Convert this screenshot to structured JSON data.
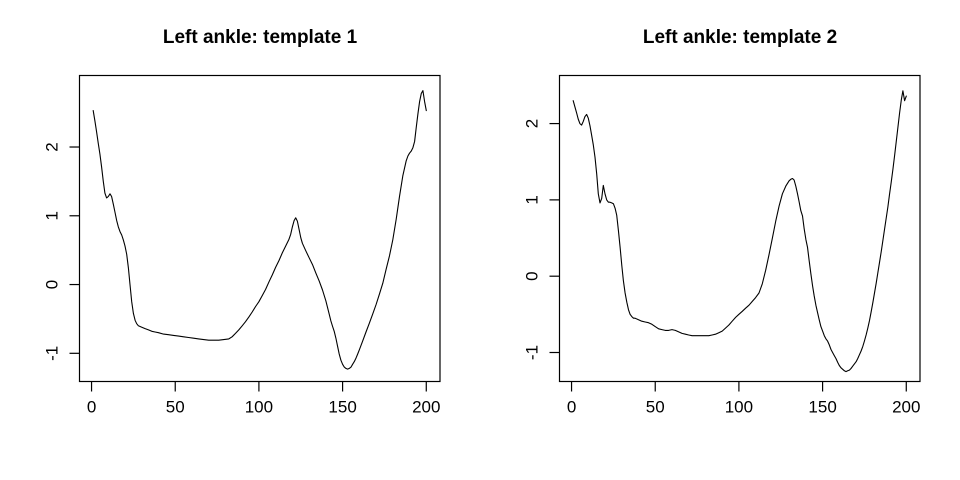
{
  "page": {
    "background_color": "#ffffff",
    "text_color": "#000000"
  },
  "chart_data": [
    {
      "type": "line",
      "title": "Left ankle: template 1",
      "xlabel": "",
      "ylabel": "",
      "legend": "none",
      "grid": false,
      "line_color": "#000000",
      "axis_color": "#000000",
      "x_ticks": [
        0,
        50,
        100,
        150,
        200
      ],
      "y_ticks": [
        -1,
        0,
        1,
        2
      ],
      "xlim": [
        -7.2,
        208.2
      ],
      "ylim": [
        -1.41,
        3.04
      ],
      "x": [
        1,
        2,
        3,
        4,
        5,
        6,
        7,
        8,
        9,
        10,
        11,
        12,
        13,
        14,
        15,
        16,
        17,
        18,
        19,
        20,
        21,
        22,
        23,
        24,
        25,
        26,
        27,
        28,
        30,
        32,
        34,
        36,
        38,
        40,
        43,
        46,
        49,
        52,
        55,
        58,
        61,
        64,
        67,
        70,
        73,
        76,
        79,
        82,
        84,
        86,
        88,
        90,
        92,
        94,
        96,
        98,
        100,
        102,
        104,
        106,
        108,
        110,
        112,
        114,
        116,
        118,
        119,
        120,
        121,
        122,
        123,
        124,
        125,
        126,
        128,
        130,
        132,
        134,
        136,
        138,
        140,
        142,
        143,
        144,
        145,
        146,
        147,
        148,
        149,
        150,
        151,
        152,
        153,
        154,
        155,
        156,
        157,
        158,
        159,
        160,
        162,
        164,
        166,
        168,
        170,
        172,
        174,
        176,
        178,
        180,
        182,
        184,
        186,
        188,
        189,
        190,
        191,
        192,
        193,
        194,
        195,
        196,
        197,
        198,
        199,
        200
      ],
      "y": [
        2.53,
        2.38,
        2.22,
        2.06,
        1.9,
        1.71,
        1.5,
        1.33,
        1.26,
        1.28,
        1.32,
        1.28,
        1.17,
        1.05,
        0.93,
        0.84,
        0.77,
        0.72,
        0.65,
        0.56,
        0.44,
        0.24,
        0.0,
        -0.25,
        -0.42,
        -0.52,
        -0.57,
        -0.6,
        -0.62,
        -0.64,
        -0.66,
        -0.68,
        -0.69,
        -0.7,
        -0.72,
        -0.73,
        -0.74,
        -0.75,
        -0.76,
        -0.77,
        -0.78,
        -0.79,
        -0.8,
        -0.81,
        -0.81,
        -0.81,
        -0.8,
        -0.79,
        -0.76,
        -0.71,
        -0.66,
        -0.6,
        -0.54,
        -0.47,
        -0.4,
        -0.32,
        -0.25,
        -0.16,
        -0.07,
        0.04,
        0.14,
        0.25,
        0.35,
        0.46,
        0.56,
        0.66,
        0.73,
        0.84,
        0.93,
        0.97,
        0.92,
        0.8,
        0.68,
        0.6,
        0.49,
        0.39,
        0.29,
        0.17,
        0.05,
        -0.08,
        -0.24,
        -0.43,
        -0.53,
        -0.61,
        -0.68,
        -0.78,
        -0.9,
        -1.01,
        -1.1,
        -1.16,
        -1.2,
        -1.22,
        -1.23,
        -1.22,
        -1.2,
        -1.16,
        -1.12,
        -1.07,
        -1.01,
        -0.95,
        -0.82,
        -0.69,
        -0.56,
        -0.43,
        -0.29,
        -0.14,
        0.02,
        0.22,
        0.42,
        0.65,
        0.95,
        1.28,
        1.58,
        1.8,
        1.87,
        1.91,
        1.94,
        1.99,
        2.08,
        2.28,
        2.48,
        2.66,
        2.78,
        2.82,
        2.66,
        2.53
      ]
    },
    {
      "type": "line",
      "title": "Left ankle: template 2",
      "xlabel": "",
      "ylabel": "",
      "legend": "none",
      "grid": false,
      "line_color": "#000000",
      "axis_color": "#000000",
      "x_ticks": [
        0,
        50,
        100,
        150,
        200
      ],
      "y_ticks": [
        -1,
        0,
        1,
        2
      ],
      "xlim": [
        -7.2,
        208.2
      ],
      "ylim": [
        -1.38,
        2.63
      ],
      "x": [
        1,
        2,
        3,
        4,
        5,
        6,
        7,
        8,
        9,
        10,
        11,
        12,
        13,
        14,
        15,
        16,
        17,
        18,
        19,
        20,
        21,
        22,
        23,
        24,
        25,
        26,
        27,
        28,
        29,
        30,
        31,
        32,
        33,
        34,
        35,
        36,
        37,
        38,
        40,
        42,
        44,
        46,
        48,
        50,
        52,
        54,
        56,
        58,
        60,
        62,
        64,
        66,
        68,
        70,
        72,
        74,
        76,
        78,
        80,
        82,
        84,
        86,
        88,
        90,
        92,
        94,
        96,
        98,
        100,
        102,
        104,
        106,
        108,
        110,
        112,
        114,
        116,
        118,
        120,
        122,
        124,
        126,
        128,
        130,
        131,
        132,
        133,
        134,
        135,
        136,
        137,
        138,
        139,
        140,
        141,
        142,
        143,
        144,
        145,
        146,
        147,
        148,
        149,
        150,
        151,
        152,
        153,
        154,
        155,
        156,
        157,
        158,
        159,
        160,
        161,
        162,
        163,
        164,
        165,
        166,
        167,
        168,
        169,
        170,
        171,
        172,
        173,
        174,
        175,
        176,
        177,
        178,
        179,
        180,
        181,
        182,
        183,
        184,
        185,
        186,
        187,
        188,
        189,
        190,
        191,
        192,
        193,
        194,
        195,
        196,
        197,
        198,
        199,
        200
      ],
      "y": [
        2.3,
        2.22,
        2.14,
        2.06,
        2.0,
        1.98,
        2.03,
        2.09,
        2.12,
        2.07,
        1.97,
        1.85,
        1.72,
        1.56,
        1.34,
        1.08,
        0.96,
        1.02,
        1.19,
        1.08,
        1.0,
        0.97,
        0.97,
        0.96,
        0.95,
        0.89,
        0.8,
        0.6,
        0.38,
        0.14,
        -0.06,
        -0.22,
        -0.34,
        -0.44,
        -0.5,
        -0.53,
        -0.55,
        -0.55,
        -0.57,
        -0.59,
        -0.6,
        -0.61,
        -0.63,
        -0.66,
        -0.69,
        -0.7,
        -0.71,
        -0.71,
        -0.7,
        -0.71,
        -0.73,
        -0.75,
        -0.76,
        -0.77,
        -0.78,
        -0.78,
        -0.78,
        -0.78,
        -0.78,
        -0.78,
        -0.77,
        -0.76,
        -0.74,
        -0.72,
        -0.68,
        -0.64,
        -0.59,
        -0.54,
        -0.5,
        -0.46,
        -0.42,
        -0.38,
        -0.33,
        -0.28,
        -0.22,
        -0.1,
        0.08,
        0.28,
        0.5,
        0.72,
        0.92,
        1.08,
        1.18,
        1.25,
        1.27,
        1.28,
        1.26,
        1.18,
        1.08,
        0.97,
        0.86,
        0.79,
        0.62,
        0.48,
        0.38,
        0.2,
        0.03,
        -0.13,
        -0.26,
        -0.38,
        -0.48,
        -0.57,
        -0.66,
        -0.72,
        -0.78,
        -0.82,
        -0.85,
        -0.9,
        -0.96,
        -1.0,
        -1.04,
        -1.08,
        -1.13,
        -1.17,
        -1.2,
        -1.22,
        -1.24,
        -1.25,
        -1.24,
        -1.23,
        -1.21,
        -1.18,
        -1.15,
        -1.12,
        -1.08,
        -1.03,
        -0.98,
        -0.92,
        -0.85,
        -0.77,
        -0.68,
        -0.58,
        -0.47,
        -0.35,
        -0.22,
        -0.09,
        0.04,
        0.18,
        0.32,
        0.46,
        0.61,
        0.76,
        0.91,
        1.07,
        1.23,
        1.4,
        1.58,
        1.76,
        1.95,
        2.14,
        2.31,
        2.43,
        2.3,
        2.36
      ]
    }
  ]
}
